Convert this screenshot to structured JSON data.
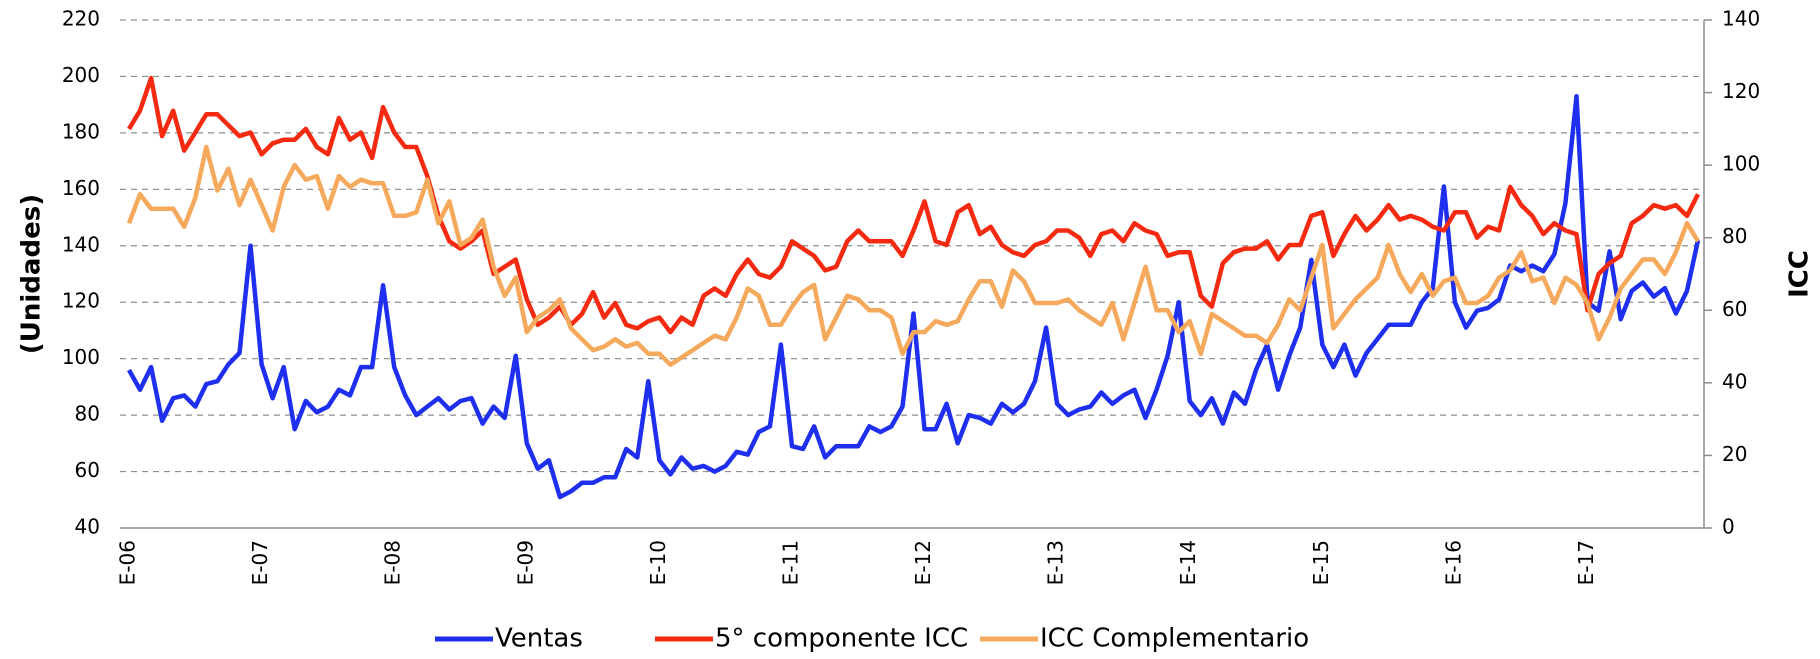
{
  "chart_data": {
    "type": "line",
    "y_label": "(Unidades)",
    "y2_label": "ICC",
    "categories": [
      "E-06",
      null,
      null,
      null,
      null,
      null,
      null,
      null,
      null,
      null,
      null,
      null,
      "E-07",
      null,
      null,
      null,
      null,
      null,
      null,
      null,
      null,
      null,
      null,
      null,
      "E-08",
      null,
      null,
      null,
      null,
      null,
      null,
      null,
      null,
      null,
      null,
      null,
      "E-09",
      null,
      null,
      null,
      null,
      null,
      null,
      null,
      null,
      null,
      null,
      null,
      "E-10",
      null,
      null,
      null,
      null,
      null,
      null,
      null,
      null,
      null,
      null,
      null,
      "E-11",
      null,
      null,
      null,
      null,
      null,
      null,
      null,
      null,
      null,
      null,
      null,
      "E-12",
      null,
      null,
      null,
      null,
      null,
      null,
      null,
      null,
      null,
      null,
      null,
      "E-13",
      null,
      null,
      null,
      null,
      null,
      null,
      null,
      null,
      null,
      null,
      null,
      "E-14",
      null,
      null,
      null,
      null,
      null,
      null,
      null,
      null,
      null,
      null,
      null,
      "E-15",
      null,
      null,
      null,
      null,
      null,
      null,
      null,
      null,
      null,
      null,
      null,
      "E-16",
      null,
      null,
      null,
      null,
      null,
      null,
      null,
      null,
      null,
      null,
      null,
      "E-17",
      null,
      null,
      null,
      null,
      null,
      null,
      null,
      null,
      null,
      null
    ],
    "ylim": [
      40,
      220
    ],
    "yticks": [
      40,
      60,
      80,
      100,
      120,
      140,
      160,
      180,
      200,
      220
    ],
    "y2lim": [
      0,
      140
    ],
    "y2ticks": [
      0,
      20,
      40,
      60,
      80,
      100,
      120,
      140
    ],
    "grid": true,
    "legend": "bottom",
    "series": [
      {
        "name": "Ventas",
        "color": "#1f2ff0",
        "axis": "y",
        "values": [
          96,
          89,
          97,
          78,
          86,
          87,
          83,
          91,
          92,
          98,
          102,
          140,
          98,
          86,
          97,
          75,
          85,
          81,
          83,
          89,
          87,
          97,
          97,
          126,
          97,
          87,
          80,
          83,
          86,
          82,
          85,
          86,
          77,
          83,
          79,
          101,
          70,
          61,
          64,
          51,
          53,
          56,
          56,
          58,
          58,
          68,
          65,
          92,
          64,
          59,
          65,
          61,
          62,
          60,
          62,
          67,
          66,
          74,
          76,
          105,
          69,
          68,
          76,
          65,
          69,
          69,
          69,
          76,
          74,
          76,
          83,
          116,
          75,
          75,
          84,
          70,
          80,
          79,
          77,
          84,
          81,
          84,
          92,
          111,
          84,
          80,
          82,
          83,
          88,
          84,
          87,
          89,
          79,
          89,
          101,
          120,
          85,
          80,
          86,
          77,
          88,
          84,
          96,
          105,
          89,
          101,
          111,
          135,
          105,
          97,
          105,
          94,
          102,
          107,
          112,
          112,
          112,
          120,
          125,
          161,
          120,
          111,
          117,
          118,
          121,
          133,
          131,
          133,
          131,
          137,
          155,
          193,
          120,
          117,
          138,
          114,
          124,
          127,
          122,
          125,
          116,
          124,
          142
        ]
      },
      {
        "name": "5° componente ICC",
        "color": "#f52a10",
        "axis": "y2",
        "values": [
          110,
          115,
          124,
          108,
          115,
          104,
          109,
          114,
          114,
          111,
          108,
          109,
          103,
          106,
          107,
          107,
          110,
          105,
          103,
          113,
          107,
          109,
          102,
          116,
          109,
          105,
          105,
          97,
          86,
          79,
          77,
          79,
          82,
          70,
          72,
          74,
          63,
          56,
          58,
          61,
          56,
          59,
          65,
          58,
          62,
          56,
          55,
          57,
          58,
          54,
          58,
          56,
          64,
          66,
          64,
          70,
          74,
          70,
          69,
          72,
          79,
          77,
          75,
          71,
          72,
          79,
          82,
          79,
          79,
          79,
          75,
          82,
          90,
          79,
          78,
          87,
          89,
          81,
          83,
          78,
          76,
          75,
          78,
          79,
          82,
          82,
          80,
          75,
          81,
          82,
          79,
          84,
          82,
          81,
          75,
          76,
          76,
          64,
          61,
          73,
          76,
          77,
          77,
          79,
          74,
          78,
          78,
          86,
          87,
          75,
          81,
          86,
          82,
          85,
          89,
          85,
          86,
          85,
          83,
          82,
          87,
          87,
          80,
          83,
          82,
          94,
          89,
          86,
          81,
          84,
          82,
          81,
          60,
          70,
          73,
          75,
          84,
          86,
          89,
          88,
          89,
          86,
          92
        ]
      },
      {
        "name": "ICC Complementario",
        "color": "#f5a95c",
        "axis": "y2",
        "values": [
          84,
          92,
          88,
          88,
          88,
          83,
          91,
          105,
          93,
          99,
          89,
          96,
          89,
          82,
          94,
          100,
          96,
          97,
          88,
          97,
          94,
          96,
          95,
          95,
          86,
          86,
          87,
          96,
          84,
          90,
          78,
          80,
          85,
          72,
          64,
          69,
          54,
          58,
          60,
          63,
          55,
          52,
          49,
          50,
          52,
          50,
          51,
          48,
          48,
          45,
          47,
          49,
          51,
          53,
          52,
          58,
          66,
          64,
          56,
          56,
          61,
          65,
          67,
          52,
          58,
          64,
          63,
          60,
          60,
          58,
          48,
          54,
          54,
          57,
          56,
          57,
          63,
          68,
          68,
          61,
          71,
          68,
          62,
          62,
          62,
          63,
          60,
          58,
          56,
          62,
          52,
          62,
          72,
          60,
          60,
          54,
          57,
          48,
          59,
          57,
          55,
          53,
          53,
          51,
          56,
          63,
          60,
          69,
          78,
          55,
          59,
          63,
          66,
          69,
          78,
          70,
          65,
          70,
          64,
          68,
          69,
          62,
          62,
          64,
          69,
          71,
          76,
          68,
          69,
          62,
          69,
          67,
          62,
          52,
          58,
          66,
          70,
          74,
          74,
          70,
          76,
          84,
          79
        ]
      }
    ]
  }
}
